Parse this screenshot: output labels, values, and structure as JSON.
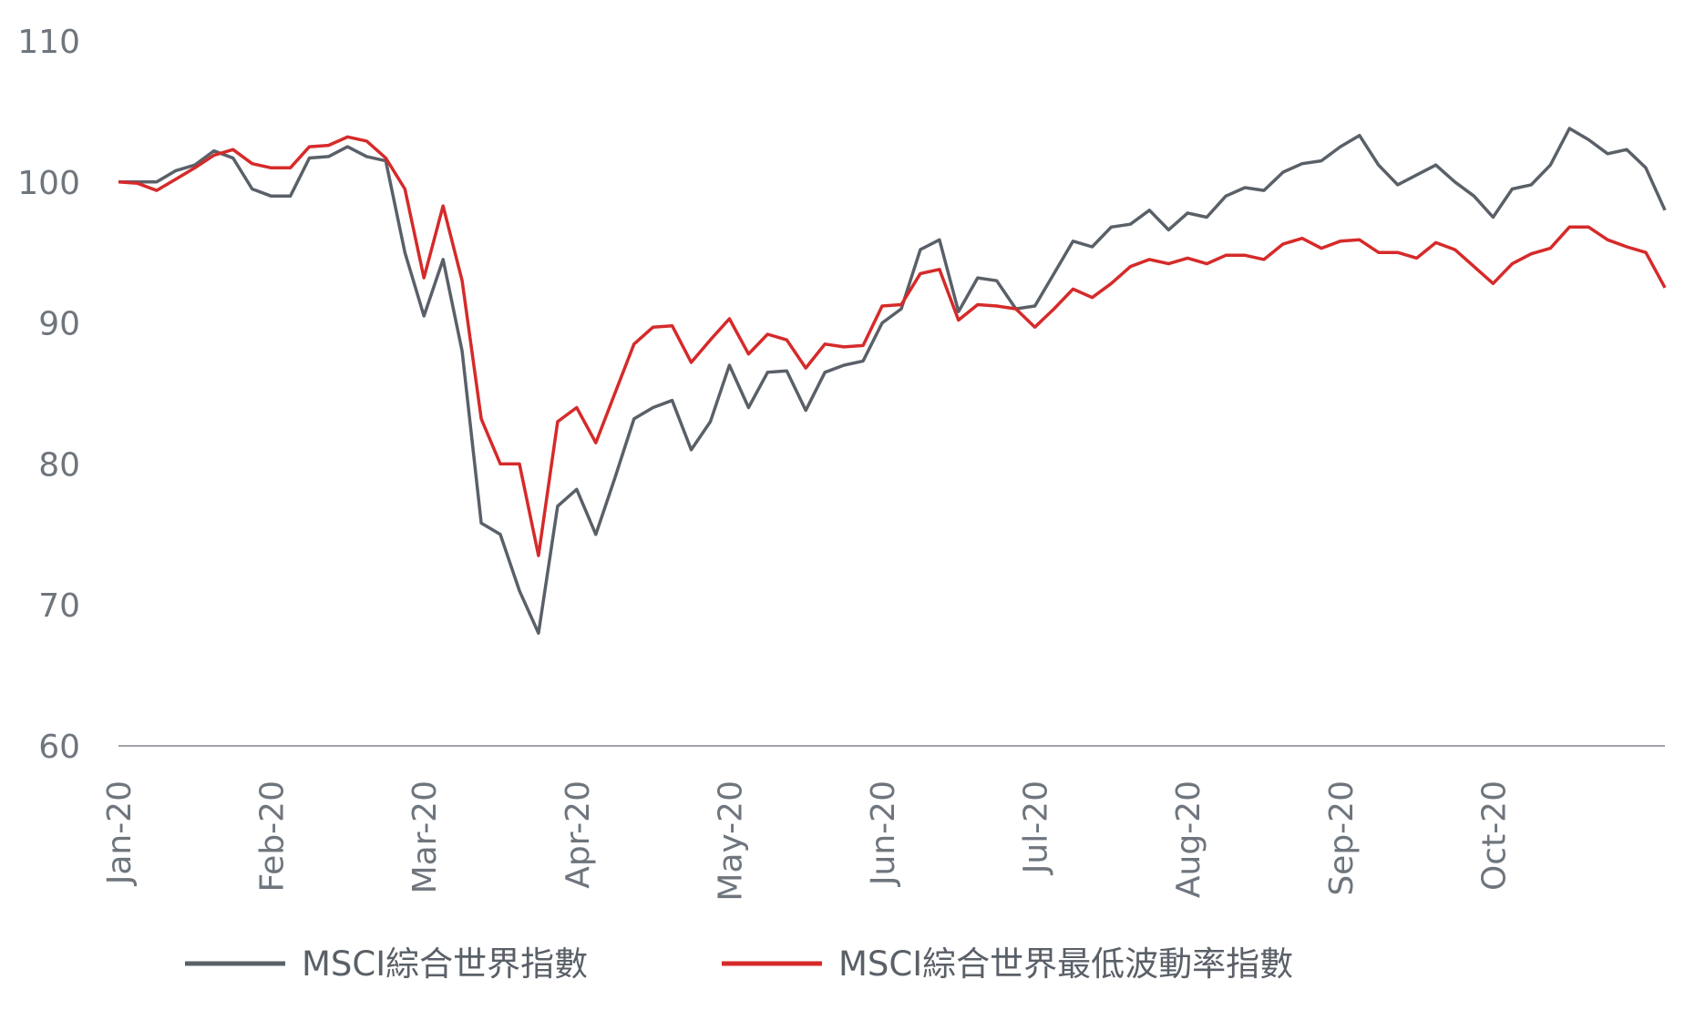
{
  "chart_data": {
    "type": "line",
    "categories": [
      "Jan-20",
      null,
      null,
      null,
      null,
      null,
      null,
      null,
      "Feb-20",
      null,
      null,
      null,
      null,
      null,
      null,
      null,
      "Mar-20",
      null,
      null,
      null,
      null,
      null,
      null,
      null,
      "Apr-20",
      null,
      null,
      null,
      null,
      null,
      null,
      null,
      "May-20",
      null,
      null,
      null,
      null,
      null,
      null,
      null,
      "Jun-20",
      null,
      null,
      null,
      null,
      null,
      null,
      null,
      "Jul-20",
      null,
      null,
      null,
      null,
      null,
      null,
      null,
      "Aug-20",
      null,
      null,
      null,
      null,
      null,
      null,
      null,
      "Sep-20",
      null,
      null,
      null,
      null,
      null,
      null,
      null,
      "Oct-20",
      null,
      null,
      null,
      null,
      null,
      null,
      null,
      null,
      null
    ],
    "series": [
      {
        "name": "MSCI綜合世界指數",
        "color": "#5a6068",
        "values": [
          100,
          100,
          100,
          100.8,
          101.2,
          102.2,
          101.7,
          99.5,
          99,
          99,
          101.7,
          101.8,
          102.5,
          101.8,
          101.5,
          95,
          90.5,
          94.5,
          88,
          75.8,
          75,
          71,
          68,
          77,
          78.2,
          75,
          79,
          83.2,
          84,
          84.5,
          81,
          83,
          87,
          84,
          86.5,
          86.6,
          83.8,
          86.5,
          87,
          87.3,
          90,
          91,
          95.2,
          95.9,
          90.8,
          93.2,
          93,
          91,
          91.2,
          93.5,
          95.8,
          95.4,
          96.8,
          97,
          98,
          96.6,
          97.8,
          97.5,
          99,
          99.6,
          99.4,
          100.7,
          101.3,
          101.5,
          102.5,
          103.3,
          101.2,
          99.8,
          100.5,
          101.2,
          100,
          99,
          97.5,
          99.5,
          99.8,
          101.2,
          103.8,
          103,
          102,
          102.3,
          101,
          98
        ]
      },
      {
        "name": "MSCI綜合世界最低波動率指數",
        "color": "#d62a2a",
        "values": [
          100,
          99.9,
          99.4,
          100.2,
          101,
          101.9,
          102.3,
          101.3,
          101,
          101,
          102.5,
          102.6,
          103.2,
          102.9,
          101.7,
          99.5,
          93.2,
          98.3,
          93,
          83.2,
          80,
          80,
          73.5,
          83,
          84,
          81.5,
          85,
          88.5,
          89.7,
          89.8,
          87.2,
          88.8,
          90.3,
          87.8,
          89.2,
          88.8,
          86.8,
          88.5,
          88.3,
          88.4,
          91.2,
          91.3,
          93.5,
          93.8,
          90.2,
          91.3,
          91.2,
          91,
          89.7,
          91,
          92.4,
          91.8,
          92.8,
          94,
          94.5,
          94.2,
          94.6,
          94.2,
          94.8,
          94.8,
          94.5,
          95.6,
          96,
          95.3,
          95.8,
          95.9,
          95,
          95,
          94.6,
          95.7,
          95.2,
          94,
          92.8,
          94.2,
          94.9,
          95.3,
          96.8,
          96.8,
          95.9,
          95.4,
          95,
          92.5
        ]
      }
    ],
    "ylim": [
      60,
      110
    ],
    "yticks": [
      60,
      70,
      80,
      90,
      100,
      110
    ],
    "legend": "bottom"
  }
}
